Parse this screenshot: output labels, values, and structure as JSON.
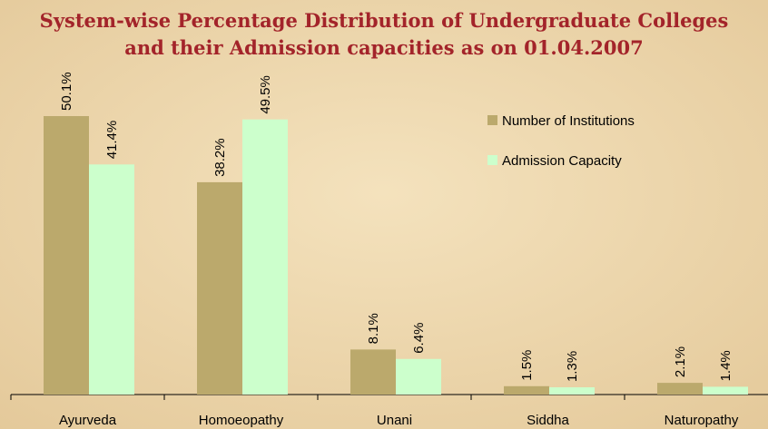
{
  "chart_data": {
    "type": "bar",
    "title": "System-wise Percentage Distribution of Undergraduate Colleges",
    "subtitle": "and their Admission capacities as on 01.04.2007",
    "categories": [
      "Ayurveda",
      "Homoeopathy",
      "Unani",
      "Siddha",
      "Naturopathy"
    ],
    "series": [
      {
        "name": "Number of Institutions",
        "color": "#bba96c",
        "values": [
          50.1,
          38.2,
          8.1,
          1.5,
          2.1
        ],
        "value_labels": [
          "50.1%",
          "38.2%",
          "8.1%",
          "1.5%",
          "2.1%"
        ]
      },
      {
        "name": "Admission Capacity",
        "color": "#ccffcc",
        "values": [
          41.4,
          49.5,
          6.4,
          1.3,
          1.4
        ],
        "value_labels": [
          "41.4%",
          "49.5%",
          "6.4%",
          "1.3%",
          "1.4%"
        ]
      }
    ],
    "legend": "upper right"
  }
}
